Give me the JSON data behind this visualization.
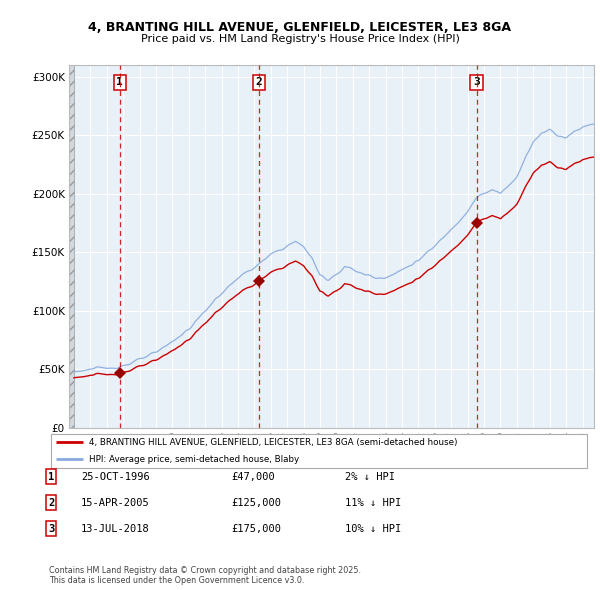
{
  "title_line1": "4, BRANTING HILL AVENUE, GLENFIELD, LEICESTER, LE3 8GA",
  "title_line2": "Price paid vs. HM Land Registry's House Price Index (HPI)",
  "legend_property": "4, BRANTING HILL AVENUE, GLENFIELD, LEICESTER, LE3 8GA (semi-detached house)",
  "legend_hpi": "HPI: Average price, semi-detached house, Blaby",
  "sale_prices": [
    47000,
    125000,
    175000
  ],
  "sale_labels": [
    "1",
    "2",
    "3"
  ],
  "sale_info": [
    {
      "label": "1",
      "date": "25-OCT-1996",
      "price": "£47,000",
      "pct": "2% ↓ HPI"
    },
    {
      "label": "2",
      "date": "15-APR-2005",
      "price": "£125,000",
      "pct": "11% ↓ HPI"
    },
    {
      "label": "3",
      "date": "13-JUL-2018",
      "price": "£175,000",
      "pct": "10% ↓ HPI"
    }
  ],
  "footnote": "Contains HM Land Registry data © Crown copyright and database right 2025.\nThis data is licensed under the Open Government Licence v3.0.",
  "property_line_color": "#cc0000",
  "hpi_line_color": "#88aadd",
  "sale_marker_color": "#990000",
  "vline_color": "#cc0000",
  "grid_color": "#cccccc",
  "bg_color": "#e8f0f8",
  "ylim": [
    0,
    310000
  ],
  "xlim_start": 1993.7,
  "xlim_end": 2025.7
}
